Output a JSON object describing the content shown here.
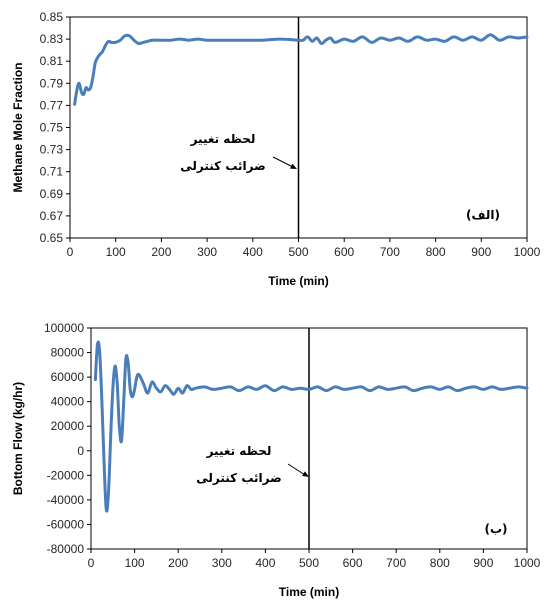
{
  "chart_data": [
    {
      "type": "line",
      "ylabel": "Methane Mole Fraction",
      "xlabel": "Time (min)",
      "panel_label": "(الف)",
      "annotation": [
        "لحظه تغییر",
        "ضرائب کنترلی"
      ],
      "xlim": [
        0,
        1000
      ],
      "ylim": [
        0.65,
        0.85
      ],
      "x_ticks": [
        0,
        100,
        200,
        300,
        400,
        500,
        600,
        700,
        800,
        900,
        1000
      ],
      "y_ticks": [
        0.65,
        0.67,
        0.69,
        0.71,
        0.73,
        0.75,
        0.77,
        0.79,
        0.81,
        0.83,
        0.85
      ],
      "vline_x": 500,
      "series_color": "#4a7ebb",
      "x": [
        10,
        15,
        20,
        25,
        30,
        35,
        40,
        45,
        50,
        55,
        60,
        65,
        70,
        75,
        80,
        85,
        90,
        95,
        100,
        110,
        120,
        130,
        140,
        150,
        160,
        170,
        180,
        200,
        220,
        240,
        260,
        280,
        300,
        340,
        380,
        420,
        460,
        500,
        510,
        520,
        530,
        540,
        550,
        560,
        570,
        580,
        600,
        620,
        640,
        660,
        680,
        700,
        720,
        740,
        760,
        780,
        800,
        820,
        840,
        860,
        880,
        900,
        920,
        940,
        960,
        980,
        1000
      ],
      "values": [
        0.771,
        0.784,
        0.79,
        0.782,
        0.78,
        0.786,
        0.784,
        0.786,
        0.795,
        0.808,
        0.813,
        0.816,
        0.818,
        0.822,
        0.826,
        0.828,
        0.827,
        0.827,
        0.827,
        0.829,
        0.833,
        0.833,
        0.829,
        0.826,
        0.827,
        0.828,
        0.829,
        0.829,
        0.829,
        0.83,
        0.829,
        0.83,
        0.829,
        0.829,
        0.829,
        0.829,
        0.83,
        0.829,
        0.829,
        0.832,
        0.828,
        0.831,
        0.826,
        0.829,
        0.831,
        0.827,
        0.83,
        0.828,
        0.832,
        0.827,
        0.831,
        0.829,
        0.831,
        0.828,
        0.832,
        0.829,
        0.83,
        0.828,
        0.832,
        0.829,
        0.832,
        0.829,
        0.834,
        0.829,
        0.832,
        0.831,
        0.832
      ]
    },
    {
      "type": "line",
      "ylabel": "Bottom Flow (kg/hr)",
      "xlabel": "Time (min)",
      "panel_label": "(ب)",
      "annotation": [
        "لحظه تغییر",
        "ضرائب کنترلی"
      ],
      "xlim": [
        0,
        1000
      ],
      "ylim": [
        -80000,
        100000
      ],
      "x_ticks": [
        0,
        100,
        200,
        300,
        400,
        500,
        600,
        700,
        800,
        900,
        1000
      ],
      "y_ticks": [
        -80000,
        -60000,
        -40000,
        -20000,
        0,
        20000,
        40000,
        60000,
        80000,
        100000
      ],
      "vline_x": 500,
      "series_color": "#4a7ebb",
      "x": [
        10,
        15,
        20,
        25,
        30,
        35,
        40,
        45,
        50,
        55,
        60,
        65,
        70,
        75,
        80,
        85,
        90,
        95,
        100,
        105,
        110,
        120,
        130,
        140,
        150,
        160,
        170,
        180,
        190,
        200,
        210,
        220,
        230,
        240,
        260,
        280,
        300,
        320,
        340,
        360,
        380,
        400,
        420,
        440,
        460,
        480,
        500,
        520,
        540,
        560,
        580,
        600,
        620,
        640,
        660,
        680,
        700,
        720,
        740,
        760,
        780,
        800,
        820,
        840,
        860,
        880,
        900,
        920,
        940,
        960,
        980,
        1000
      ],
      "values": [
        58000,
        87000,
        80000,
        40000,
        -10000,
        -48000,
        -35000,
        10000,
        50000,
        69000,
        55000,
        20000,
        8000,
        40000,
        75000,
        72000,
        50000,
        44000,
        50000,
        60000,
        62000,
        55000,
        47000,
        56000,
        51000,
        48000,
        53000,
        50000,
        46000,
        51000,
        47000,
        53000,
        50000,
        51000,
        52000,
        50000,
        51000,
        52000,
        49000,
        52000,
        50000,
        53000,
        49000,
        52000,
        50000,
        51000,
        50000,
        52000,
        49000,
        52000,
        50000,
        51000,
        52000,
        49000,
        52000,
        50000,
        51000,
        52000,
        49000,
        51000,
        52000,
        50000,
        52000,
        49000,
        51000,
        52000,
        50000,
        52000,
        50000,
        51000,
        52000,
        51000
      ]
    }
  ]
}
